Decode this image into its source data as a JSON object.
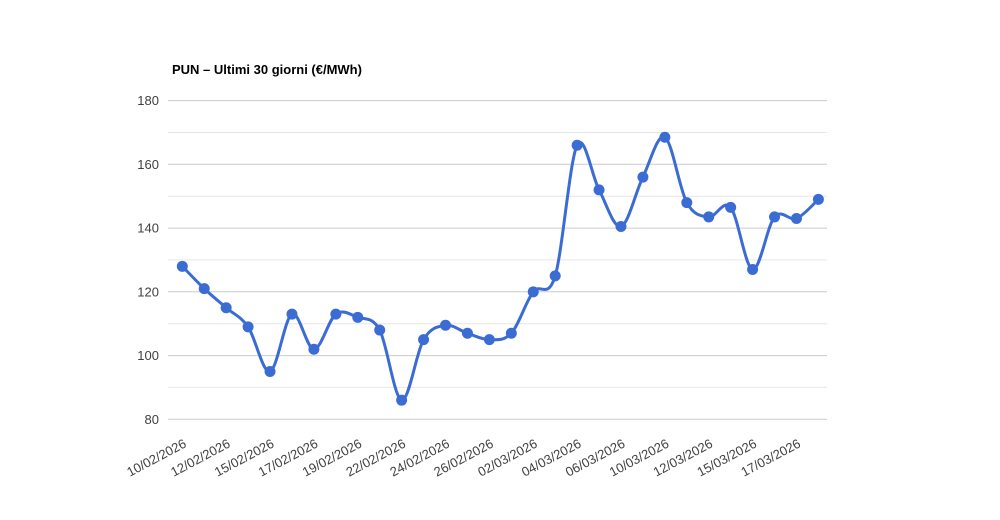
{
  "chart": {
    "background_color": "#ffffff",
    "accent_color": "#3a6cd3",
    "grid_major_color": "#cccccc",
    "grid_minor_color": "#e6e6e6",
    "axis_label_color": "#404040",
    "title_color": "#000000"
  },
  "chart_data": {
    "type": "line",
    "title": "PUN – Ultimi 30 giorni (€/MWh)",
    "xlabel": "",
    "ylabel": "",
    "ylim": [
      80,
      180
    ],
    "y_ticks": [
      80,
      100,
      120,
      140,
      160,
      180
    ],
    "grid_minor_step": 10,
    "grid": true,
    "legend": false,
    "smooth": true,
    "marker": "circle",
    "n_points": 30,
    "x_tick_every": 2,
    "x_tick_labels": [
      "10/02/2026",
      "12/02/2026",
      "15/02/2026",
      "17/02/2026",
      "19/02/2026",
      "22/02/2026",
      "24/02/2026",
      "26/02/2026",
      "02/03/2026",
      "04/03/2026",
      "06/03/2026",
      "10/03/2026",
      "12/03/2026",
      "15/03/2026",
      "17/03/2026"
    ],
    "values": [
      128,
      121,
      115,
      109,
      95,
      113,
      102,
      113,
      112,
      108,
      86,
      105,
      109.5,
      107,
      105,
      107,
      120,
      125,
      166,
      152,
      140.5,
      156,
      168.5,
      148,
      143.5,
      146.5,
      127,
      143.5,
      143,
      149
    ]
  }
}
